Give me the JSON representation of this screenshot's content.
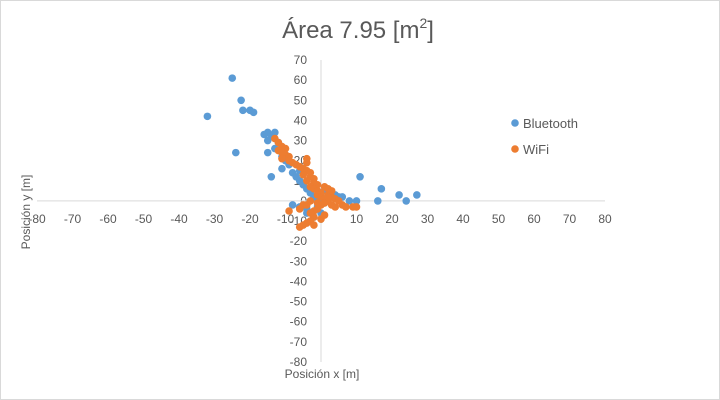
{
  "chart_data": {
    "type": "scatter",
    "title": "Área 7.95 [m",
    "title_superscript": "2",
    "title_suffix": "]",
    "xlabel": "Posición x [m]",
    "ylabel": "Posición y [m]",
    "xlim": [
      -80,
      80
    ],
    "ylim": [
      -80,
      70
    ],
    "x_ticks": [
      -80,
      -70,
      -60,
      -50,
      -40,
      -30,
      -20,
      -10,
      0,
      10,
      20,
      30,
      40,
      50,
      60,
      70,
      80
    ],
    "y_ticks": [
      -80,
      -70,
      -60,
      -50,
      -40,
      -30,
      -20,
      -10,
      0,
      10,
      20,
      30,
      40,
      50,
      60,
      70
    ],
    "grid": false,
    "legend_position": "right",
    "series": [
      {
        "name": "Bluetooth",
        "color": "#5b9bd5",
        "points": [
          [
            -25,
            61
          ],
          [
            -22.5,
            50
          ],
          [
            -22,
            45
          ],
          [
            -20,
            45
          ],
          [
            -19,
            44
          ],
          [
            -32,
            42
          ],
          [
            -15,
            34
          ],
          [
            -13,
            34
          ],
          [
            -16,
            33
          ],
          [
            -14,
            32
          ],
          [
            -15,
            30
          ],
          [
            -12,
            29
          ],
          [
            -13,
            26
          ],
          [
            -15,
            24
          ],
          [
            -24,
            24
          ],
          [
            -11,
            22
          ],
          [
            -10,
            20
          ],
          [
            -9,
            18
          ],
          [
            -11,
            16
          ],
          [
            -8,
            14
          ],
          [
            -14,
            12
          ],
          [
            -6,
            10
          ],
          [
            -5,
            8
          ],
          [
            -4,
            6
          ],
          [
            -3,
            4
          ],
          [
            -2,
            2
          ],
          [
            -1,
            1
          ],
          [
            0,
            0
          ],
          [
            1,
            -1
          ],
          [
            -1,
            -3
          ],
          [
            -6,
            -3
          ],
          [
            -8,
            -2
          ],
          [
            -4,
            -4
          ],
          [
            2,
            3
          ],
          [
            3,
            4
          ],
          [
            4,
            3
          ],
          [
            5,
            2
          ],
          [
            6,
            2
          ],
          [
            8,
            0
          ],
          [
            10,
            0
          ],
          [
            11,
            12
          ],
          [
            16,
            0
          ],
          [
            17,
            6
          ],
          [
            22,
            3
          ],
          [
            24,
            0
          ],
          [
            27,
            3
          ],
          [
            -3,
            -10
          ],
          [
            -4,
            -6
          ],
          [
            -2,
            -8
          ],
          [
            0,
            -6
          ],
          [
            1,
            5
          ],
          [
            -7,
            12
          ],
          [
            -6,
            15
          ]
        ]
      },
      {
        "name": "WiFi",
        "color": "#ed7d31",
        "points": [
          [
            -13,
            31
          ],
          [
            -12,
            29
          ],
          [
            -11,
            27
          ],
          [
            -10,
            26
          ],
          [
            -12,
            25
          ],
          [
            -11,
            24
          ],
          [
            -10,
            23
          ],
          [
            -9,
            22
          ],
          [
            -11,
            21
          ],
          [
            -9,
            20
          ],
          [
            -8,
            19
          ],
          [
            -7,
            18
          ],
          [
            -6,
            17
          ],
          [
            -4,
            21
          ],
          [
            -4,
            19
          ],
          [
            -5,
            16
          ],
          [
            -4,
            15
          ],
          [
            -3,
            14
          ],
          [
            -5,
            13
          ],
          [
            -3,
            12
          ],
          [
            -2,
            11
          ],
          [
            -4,
            10
          ],
          [
            -2,
            9
          ],
          [
            -1,
            8
          ],
          [
            -3,
            7
          ],
          [
            -2,
            6
          ],
          [
            -1,
            5
          ],
          [
            0,
            4
          ],
          [
            -1,
            3
          ],
          [
            0,
            2
          ],
          [
            1,
            1
          ],
          [
            2,
            0
          ],
          [
            1,
            -1
          ],
          [
            3,
            -2
          ],
          [
            4,
            -3
          ],
          [
            2,
            3
          ],
          [
            3,
            2
          ],
          [
            4,
            1
          ],
          [
            5,
            0
          ],
          [
            6,
            -2
          ],
          [
            7,
            -3
          ],
          [
            9,
            -3
          ],
          [
            10,
            -3
          ],
          [
            1,
            7
          ],
          [
            2,
            6
          ],
          [
            3,
            5
          ],
          [
            -1,
            -4
          ],
          [
            -2,
            -5
          ],
          [
            -3,
            -6
          ],
          [
            -2,
            -8
          ],
          [
            -3,
            -10
          ],
          [
            -4,
            -11
          ],
          [
            -5,
            -12
          ],
          [
            -6,
            -13
          ],
          [
            -2,
            -12
          ],
          [
            0,
            -9
          ],
          [
            1,
            -7
          ],
          [
            -5,
            -2
          ],
          [
            -6,
            -4
          ],
          [
            -9,
            -5
          ],
          [
            -4,
            -2
          ],
          [
            -3,
            0
          ],
          [
            -1,
            -1
          ],
          [
            0,
            -2
          ],
          [
            2,
            2
          ]
        ]
      }
    ]
  }
}
